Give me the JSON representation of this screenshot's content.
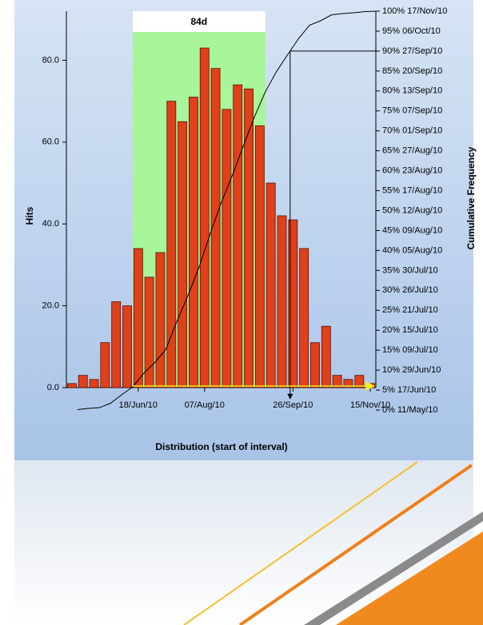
{
  "chart_data": {
    "type": "bar",
    "xlabel": "Distribution (start of interval)",
    "ylabel": "Hits",
    "y2label": "Cumulative Frequency",
    "categories": [
      null,
      null,
      null,
      null,
      null,
      null,
      "18/Jun/10",
      null,
      null,
      null,
      null,
      null,
      "07/Aug/10",
      null,
      null,
      null,
      null,
      null,
      null,
      null,
      "26/Sep/10",
      null,
      null,
      null,
      null,
      null,
      null,
      "15/Nov/10"
    ],
    "values": [
      1,
      3,
      2,
      11,
      21,
      20,
      34,
      27,
      33,
      70,
      65,
      71,
      83,
      78,
      68,
      74,
      73,
      64,
      50,
      42,
      41,
      34,
      11,
      15,
      3,
      2,
      3,
      1
    ],
    "color": "#e0401a",
    "cumulative": {
      "axis": "y2",
      "color": "#000000",
      "values": [
        0.1,
        0.4,
        0.6,
        1.7,
        3.8,
        5.8,
        9.2,
        11.9,
        15.2,
        22.2,
        28.7,
        35.8,
        44.1,
        51.9,
        58.7,
        66.1,
        73.4,
        79.8,
        84.8,
        89,
        93.1,
        96.5,
        97.6,
        99.1,
        99.4,
        99.6,
        99.9,
        100
      ]
    },
    "highlight": {
      "label": "84d",
      "span": [
        6,
        18
      ],
      "color": "#a8f59a"
    },
    "threshold": 90,
    "ylim": [
      0,
      92
    ],
    "yticks": [
      {
        "value": 0,
        "label": "0.0"
      },
      {
        "value": 20,
        "label": "20.0"
      },
      {
        "value": 40,
        "label": "40.0"
      },
      {
        "value": 60,
        "label": "60.0"
      },
      {
        "value": 80,
        "label": "80.0"
      }
    ],
    "y2lim": [
      0,
      100
    ],
    "y2ticks": [
      {
        "value": 0,
        "label": "0% 11/May/10"
      },
      {
        "value": 5,
        "label": "5% 17/Jun/10"
      },
      {
        "value": 10,
        "label": "10% 29/Jun/10"
      },
      {
        "value": 15,
        "label": "15% 09/Jul/10"
      },
      {
        "value": 20,
        "label": "20% 15/Jul/10"
      },
      {
        "value": 25,
        "label": "25% 21/Jul/10"
      },
      {
        "value": 30,
        "label": "30% 26/Jul/10"
      },
      {
        "value": 35,
        "label": "35% 30/Jul/10"
      },
      {
        "value": 40,
        "label": "40% 05/Aug/10"
      },
      {
        "value": 45,
        "label": "45% 09/Aug/10"
      },
      {
        "value": 50,
        "label": "50% 12/Aug/10"
      },
      {
        "value": 55,
        "label": "55% 17/Aug/10"
      },
      {
        "value": 60,
        "label": "60% 23/Aug/10"
      },
      {
        "value": 65,
        "label": "65% 27/Aug/10"
      },
      {
        "value": 70,
        "label": "70% 01/Sep/10"
      },
      {
        "value": 75,
        "label": "75% 07/Sep/10"
      },
      {
        "value": 80,
        "label": "80% 13/Sep/10"
      },
      {
        "value": 85,
        "label": "85% 20/Sep/10"
      },
      {
        "value": 90,
        "label": "90% 27/Sep/10"
      },
      {
        "value": 95,
        "label": "95% 06/Oct/10"
      },
      {
        "value": 100,
        "label": "100% 17/Nov/10"
      }
    ]
  }
}
